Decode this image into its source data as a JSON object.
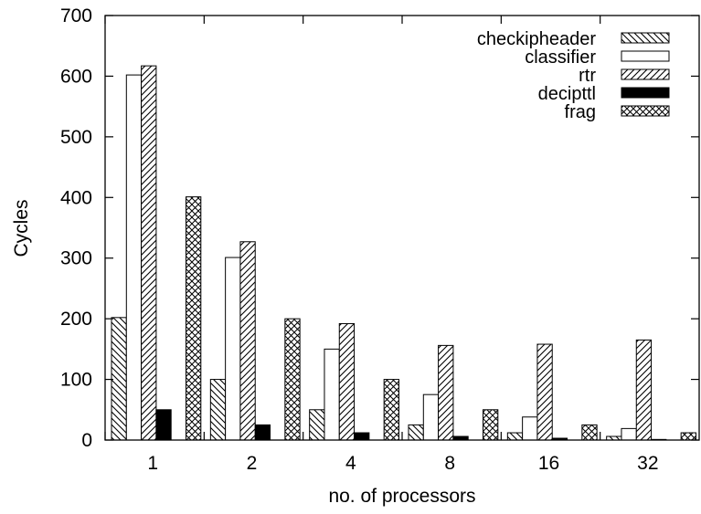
{
  "chart_data": {
    "type": "bar",
    "title": "",
    "xlabel": "no. of processors",
    "ylabel": "Cycles",
    "ylim": [
      0,
      700
    ],
    "yticks": [
      0,
      100,
      200,
      300,
      400,
      500,
      600,
      700
    ],
    "categories": [
      "1",
      "2",
      "4",
      "8",
      "16",
      "32"
    ],
    "grid": false,
    "legend_position": "top-right",
    "series": [
      {
        "name": "checkipheader",
        "pattern": "diagonal-backslash",
        "values": [
          202,
          100,
          50,
          25,
          12,
          6
        ]
      },
      {
        "name": "classifier",
        "pattern": "white",
        "values": [
          602,
          301,
          150,
          75,
          38,
          19
        ]
      },
      {
        "name": "rtr",
        "pattern": "diagonal-slash",
        "values": [
          617,
          327,
          192,
          156,
          158,
          165
        ]
      },
      {
        "name": "decipttl",
        "pattern": "solid-black",
        "values": [
          50,
          25,
          12,
          6,
          3,
          1
        ]
      },
      {
        "name": "frag",
        "pattern": "crosshatch",
        "values": [
          401,
          200,
          100,
          50,
          25,
          12
        ]
      }
    ]
  }
}
